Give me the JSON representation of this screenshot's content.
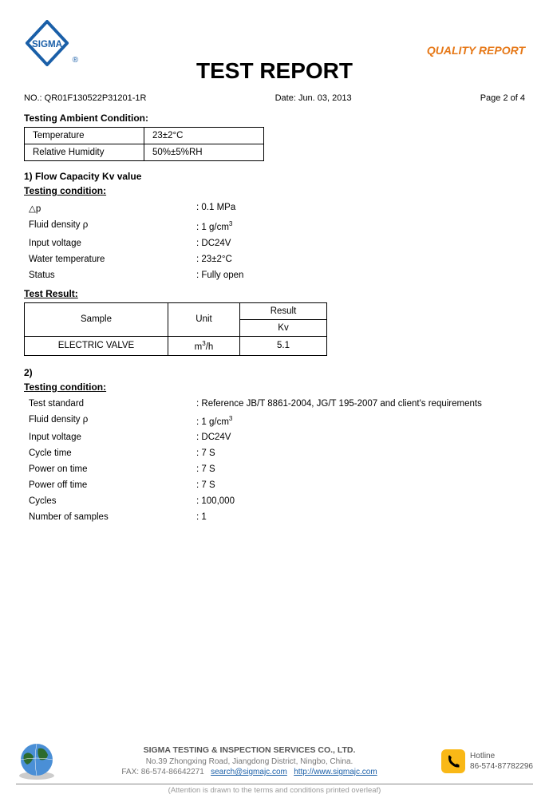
{
  "header": {
    "logo_text": "SIGMA",
    "quality": "QUALITY REPORT"
  },
  "title": "TEST REPORT",
  "meta": {
    "no_label": "NO.: QR01F130522P31201-1R",
    "date": "Date: Jun. 03, 2013",
    "page": "Page 2 of 4"
  },
  "ambient": {
    "label": "Testing Ambient Condition:",
    "rows": [
      {
        "k": "Temperature",
        "v": "23±2°C"
      },
      {
        "k": "Relative Humidity",
        "v": "50%±5%RH"
      }
    ]
  },
  "section1": {
    "num": "1) Flow Capacity Kv value",
    "cond_label": "Testing condition:",
    "conds": [
      {
        "k": "△p",
        "v": ": 0.1 MPa"
      },
      {
        "k": "Fluid density ρ",
        "v": ": 1 g/cm",
        "sup": "3"
      },
      {
        "k": "Input voltage",
        "v": ": DC24V"
      },
      {
        "k": "Water temperature",
        "v": ": 23±2°C"
      },
      {
        "k": "Status",
        "v": ": Fully open"
      }
    ],
    "result_label": "Test Result:",
    "table": {
      "h_sample": "Sample",
      "h_unit": "Unit",
      "h_result": "Result",
      "h_kv": "Kv",
      "row_sample": "ELECTRIC VALVE",
      "row_unit_pre": "m",
      "row_unit_sup": "3",
      "row_unit_post": "/h",
      "row_kv": "5.1"
    }
  },
  "section2": {
    "num": "2)",
    "cond_label": "Testing condition:",
    "conds": [
      {
        "k": "Test standard",
        "v": ": Reference JB/T 8861-2004, JG/T 195-2007 and client's requirements"
      },
      {
        "k": "Fluid density ρ",
        "v": ": 1 g/cm",
        "sup": "3"
      },
      {
        "k": "Input voltage",
        "v": ": DC24V"
      },
      {
        "k": "Cycle time",
        "v": ": 7 S"
      },
      {
        "k": "Power on time",
        "v": ": 7 S"
      },
      {
        "k": "Power off time",
        "v": ": 7 S"
      },
      {
        "k": "Cycles",
        "v": ": 100,000"
      },
      {
        "k": "Number of samples",
        "v": ": 1"
      }
    ]
  },
  "footer": {
    "company": "SIGMA TESTING & INSPECTION SERVICES CO., LTD.",
    "addr": "No.39 Zhongxing Road, Jiangdong District, Ningbo, China.",
    "fax": "FAX: 86-574-86642271",
    "email": "search@sigmajc.com",
    "site": "http://www.sigmajc.com",
    "hotline_label": "Hotline",
    "hotline_num": "86-574-87782296",
    "attn": "(Attention is drawn to the terms and conditions printed overleaf)"
  },
  "colors": {
    "brand": "#1a5fa8",
    "orange": "#e67817",
    "phone_bg": "#f9b816"
  }
}
